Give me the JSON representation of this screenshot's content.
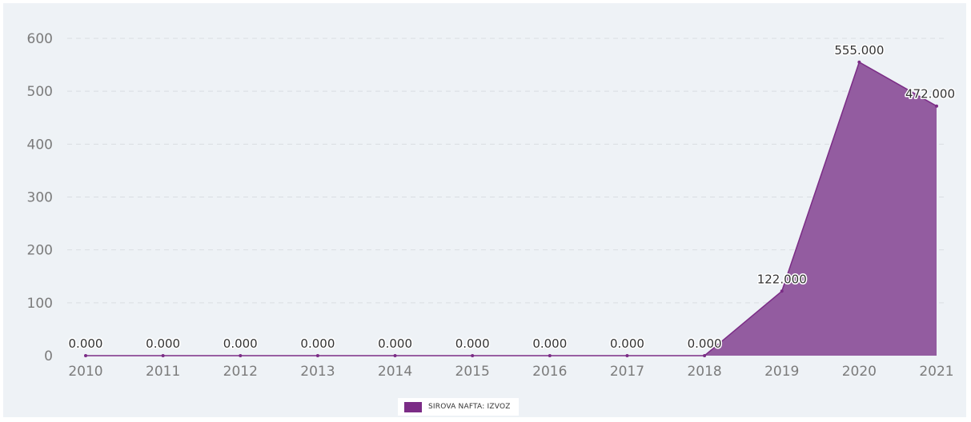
{
  "chart_data": {
    "type": "area",
    "categories": [
      "2010",
      "2011",
      "2012",
      "2013",
      "2014",
      "2015",
      "2016",
      "2017",
      "2018",
      "2019",
      "2020",
      "2021"
    ],
    "series": [
      {
        "name": "SIROVA NAFTA: IZVOZ",
        "values": [
          0,
          0,
          0,
          0,
          0,
          0,
          0,
          0,
          0,
          122,
          555,
          472
        ],
        "labels": [
          "0.000",
          "0.000",
          "0.000",
          "0.000",
          "0.000",
          "0.000",
          "0.000",
          "0.000",
          "0.000",
          "122.000",
          "555.000",
          "472.000"
        ],
        "color": "#7b2c86",
        "fill_color": "#935ca0"
      }
    ],
    "yticks": [
      "0",
      "100",
      "200",
      "300",
      "400",
      "500",
      "600"
    ],
    "ylim": [
      0,
      600
    ],
    "grid": true,
    "legend_position": "bottom-center",
    "background": "#eef2f6"
  }
}
